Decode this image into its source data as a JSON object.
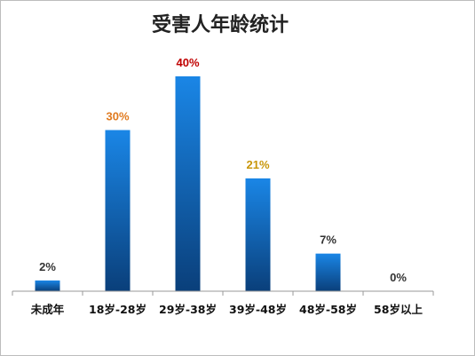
{
  "chart_data": {
    "type": "bar",
    "title": "受害人年龄统计",
    "xlabel": "",
    "ylabel": "",
    "categories": [
      "未成年",
      "18岁-28岁",
      "29岁-38岁",
      "39岁-48岁",
      "48岁-58岁",
      "58岁以上"
    ],
    "values": [
      2,
      30,
      40,
      21,
      7,
      0
    ],
    "data_labels": [
      "2%",
      "30%",
      "40%",
      "21%",
      "7%",
      "0%"
    ],
    "ylim": [
      0,
      40
    ],
    "grid": false,
    "legend": "none"
  },
  "colors": {
    "bar_top": "#1a86e6",
    "bar_bottom": "#0a3f7a",
    "label_colors": [
      "#333333",
      "#e07a1f",
      "#c00000",
      "#c8960a",
      "#333333",
      "#333333"
    ],
    "axis": "#999999"
  }
}
